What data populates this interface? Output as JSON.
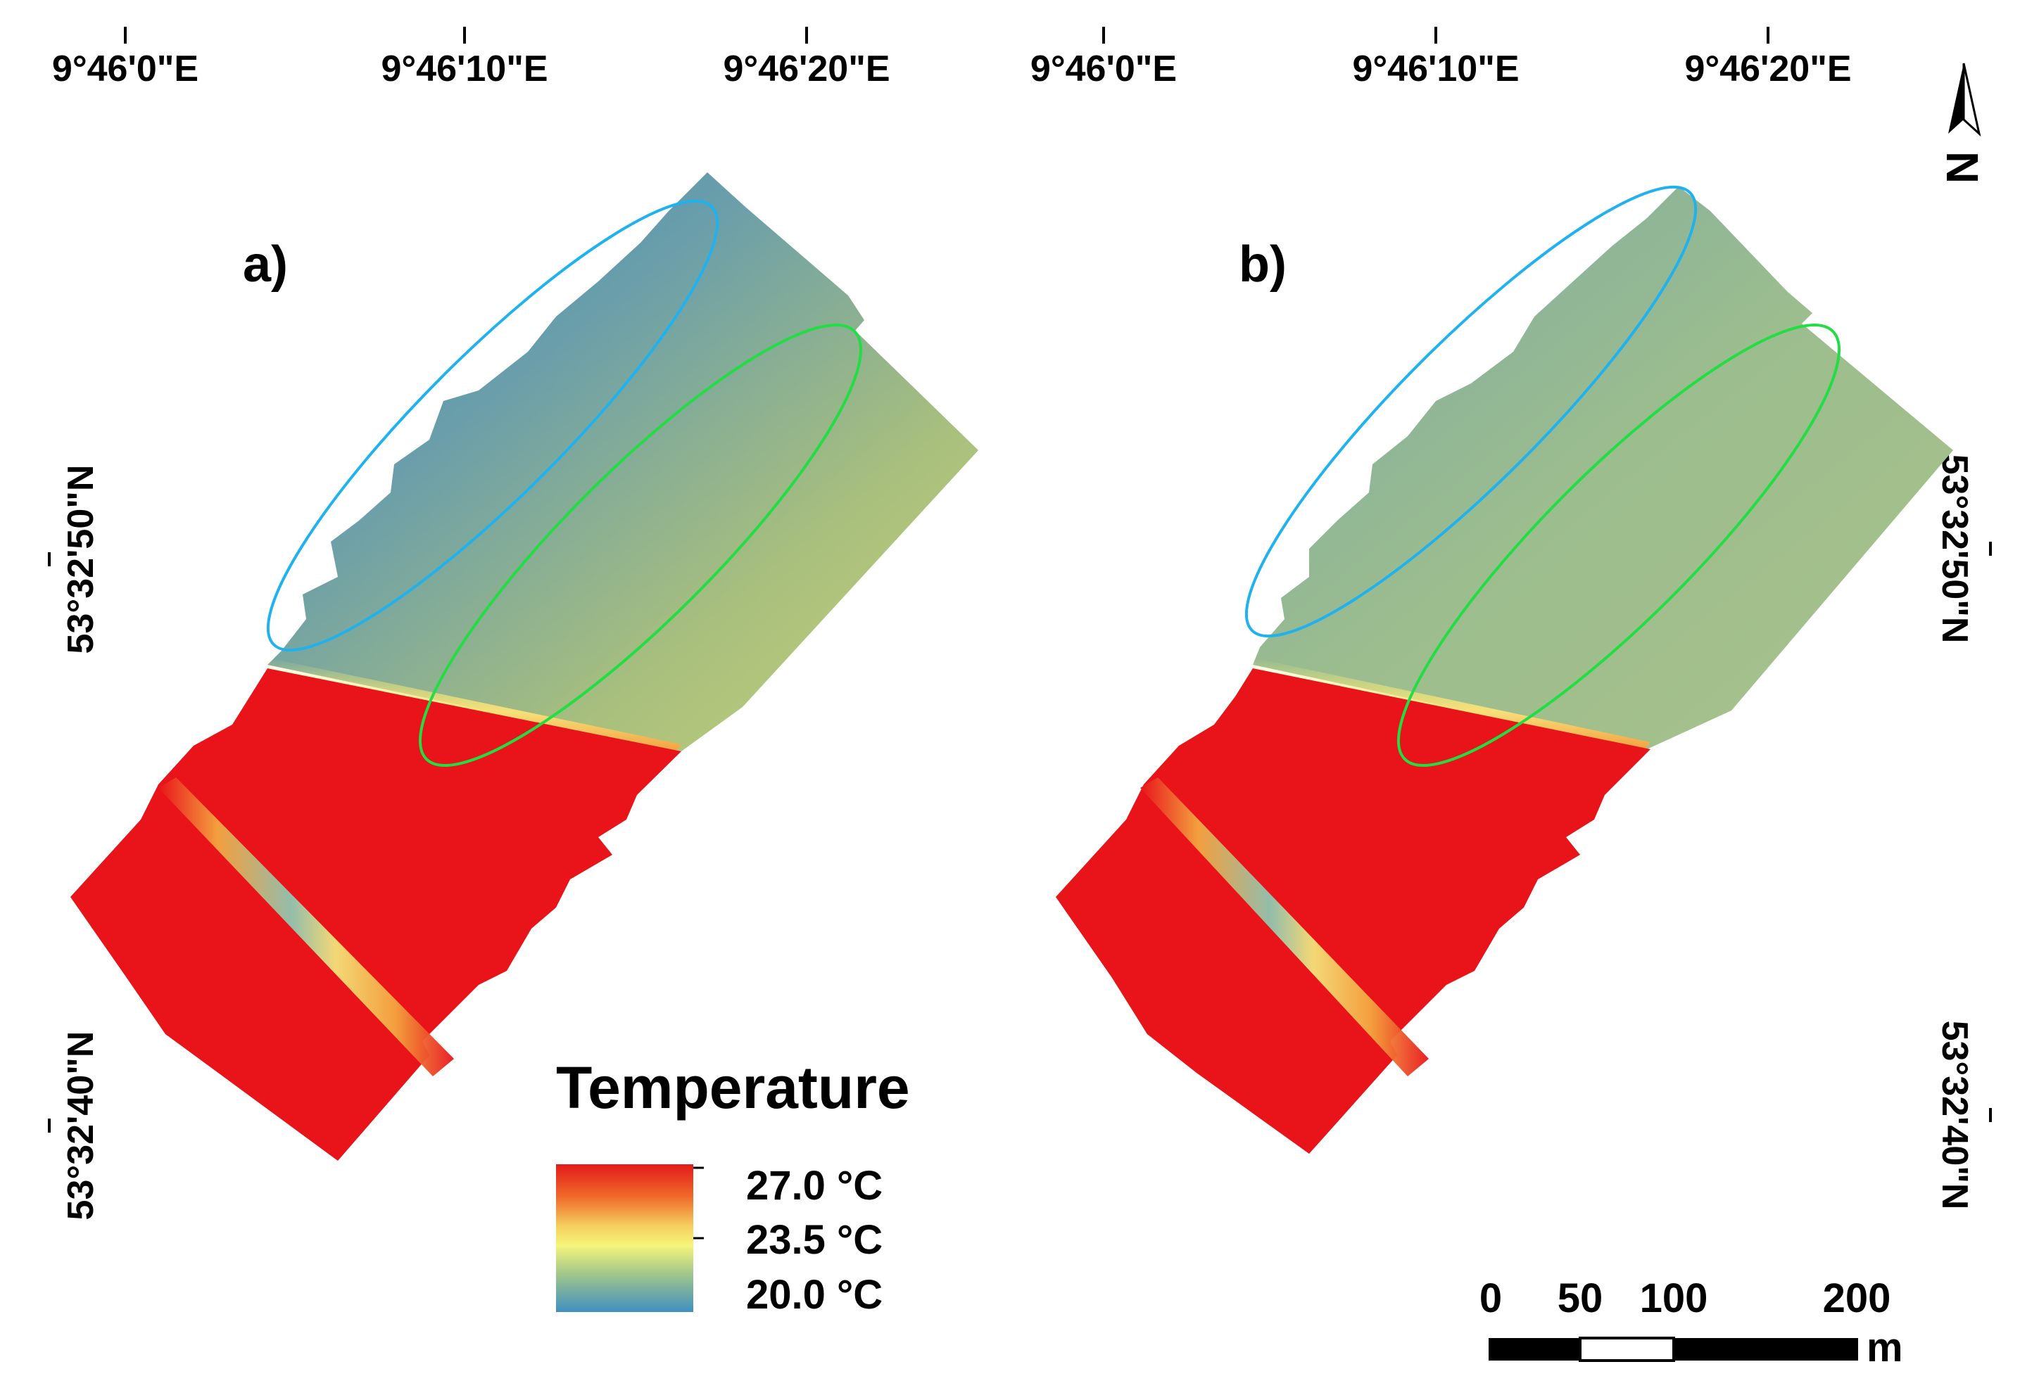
{
  "figure": {
    "top_axis_labels": [
      "9°46'0\"E",
      "9°46'10\"E",
      "9°46'20\"E"
    ],
    "left_axis_labels": [
      "53°32'50\"N",
      "53°32'40\"N"
    ],
    "right_axis_labels": [
      "53°32'50\"N",
      "53°32'40\"N"
    ]
  },
  "panels": [
    {
      "id": "a",
      "label": "a)",
      "variant": "original"
    },
    {
      "id": "b",
      "label": "b)",
      "variant": "corrected"
    }
  ],
  "legend": {
    "title": "Temperature",
    "entries": [
      "27.0 °C",
      "23.5 °C",
      "20.0 °C"
    ],
    "colors": {
      "high": "#e31a1c",
      "mid": "#f5f57a",
      "low": "#3f8fc0"
    }
  },
  "scalebar": {
    "ticks": [
      "0",
      "50",
      "100",
      "200"
    ],
    "unit": "m"
  },
  "north_arrow": {
    "label": "N"
  },
  "annotations": {
    "blue_ellipse_color": "#1fb2ee",
    "green_ellipse_color": "#22dd44",
    "warm_water_color": "#e8141a"
  }
}
